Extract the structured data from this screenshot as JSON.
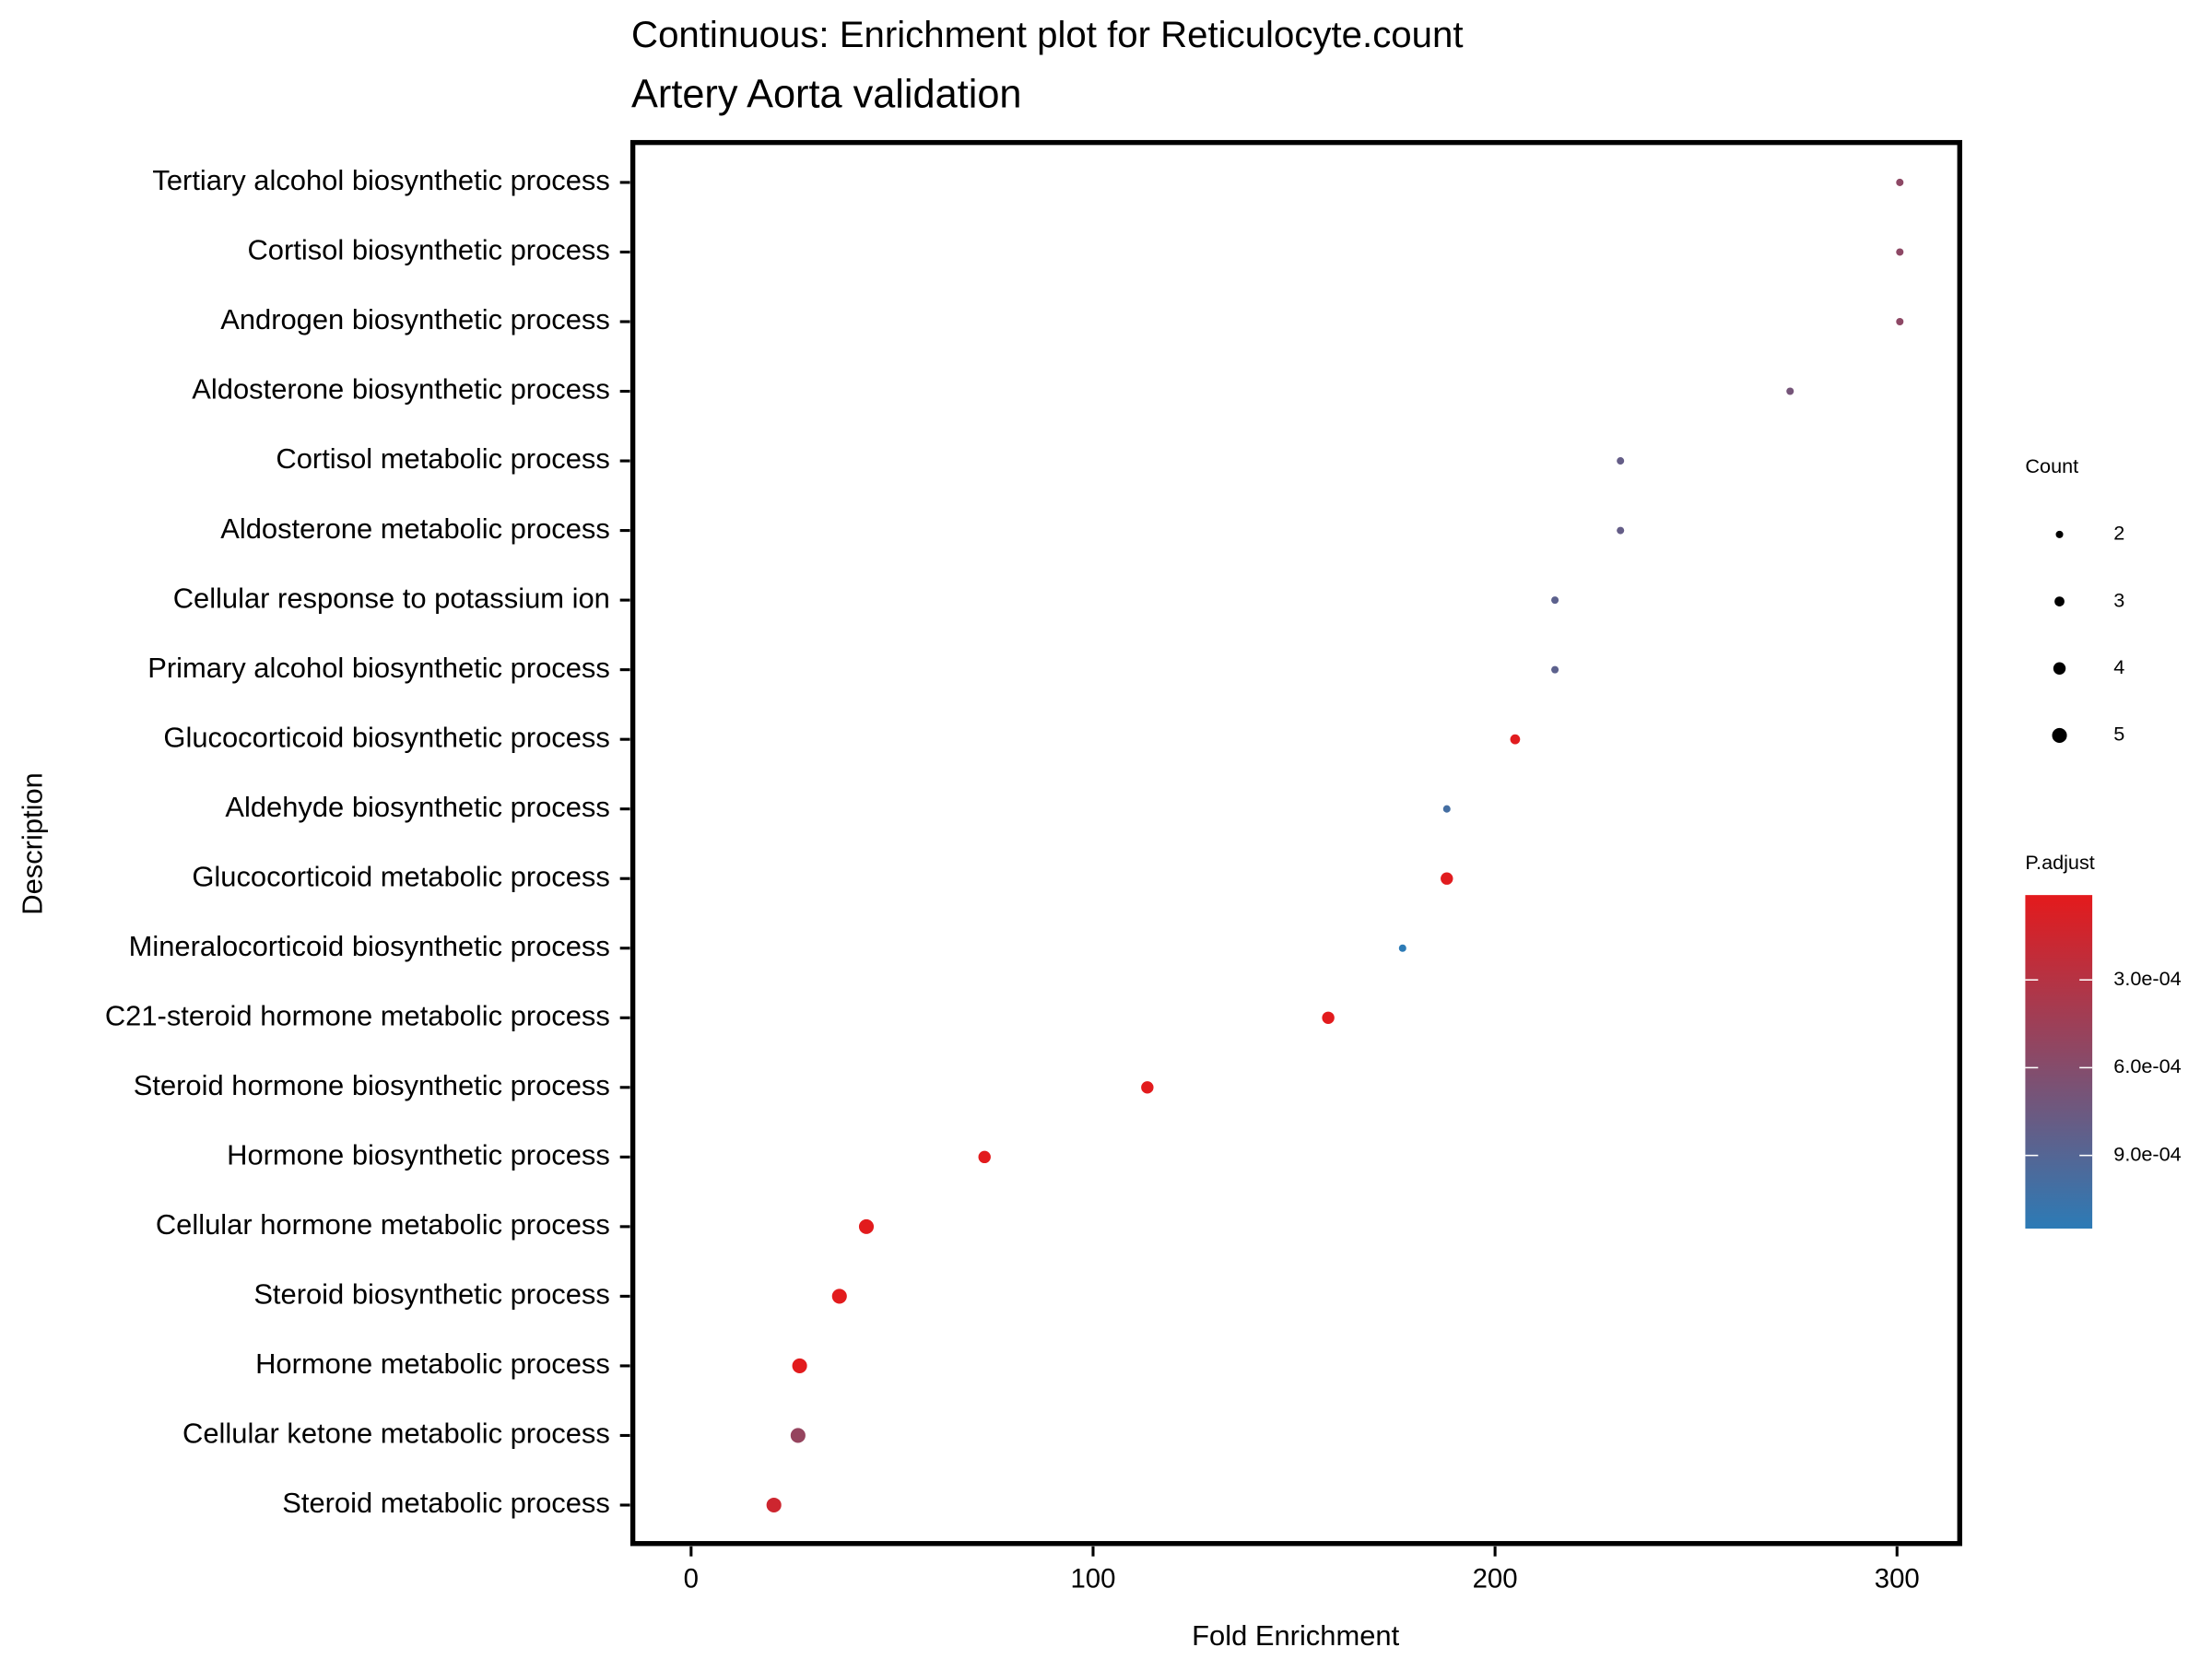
{
  "chart_data": {
    "type": "dot",
    "title": "Continuous: Enrichment plot for Reticulocyte.count",
    "subtitle": "Artery Aorta validation",
    "x_label": "Fold Enrichment",
    "y_label": "Description",
    "categories": [
      "Tertiary alcohol biosynthetic process",
      "Cortisol biosynthetic process",
      "Androgen biosynthetic process",
      "Aldosterone biosynthetic process",
      "Cortisol metabolic process",
      "Aldosterone metabolic process",
      "Cellular response to potassium ion",
      "Primary alcohol biosynthetic process",
      "Glucocorticoid biosynthetic process",
      "Aldehyde biosynthetic process",
      "Glucocorticoid metabolic process",
      "Mineralocorticoid biosynthetic process",
      "C21-steroid hormone metabolic process",
      "Steroid hormone biosynthetic process",
      "Hormone biosynthetic process",
      "Cellular hormone metabolic process",
      "Steroid biosynthetic process",
      "Hormone metabolic process",
      "Cellular ketone metabolic process",
      "Steroid metabolic process"
    ],
    "values": [
      300.7,
      300.7,
      300.7,
      273.4,
      231.2,
      231.2,
      214.9,
      214.9,
      205,
      188,
      188,
      177,
      158.5,
      113.5,
      73,
      43.6,
      36.9,
      27,
      26.6,
      20.6
    ],
    "counts": [
      2,
      2,
      2,
      2,
      2,
      2,
      2,
      2,
      3,
      2,
      4,
      2,
      4,
      4,
      4,
      5,
      5,
      5,
      5,
      5
    ],
    "p_adjust": [
      0.00055,
      0.00055,
      0.00055,
      0.0007,
      0.0008,
      0.0008,
      0.00085,
      0.00085,
      3e-05,
      0.001,
      3e-05,
      0.00115,
      2e-05,
      2e-05,
      2e-05,
      2e-05,
      2e-05,
      2e-05,
      0.0005,
      0.00015
    ],
    "xlim": [
      -14.5,
      315.6
    ],
    "xticks": [
      0,
      100,
      200,
      300
    ],
    "size_label": "Count",
    "size_legend": [
      2,
      3,
      4,
      5
    ],
    "color_label": "P.adjust",
    "color_lim": [
      1e-05,
      0.00115
    ],
    "color_ticks": [
      {
        "value": 0.0003,
        "label": "3.0e-04"
      },
      {
        "value": 0.0006,
        "label": "6.0e-04"
      },
      {
        "value": 0.0009,
        "label": "9.0e-04"
      }
    ],
    "color_low": "#e41a1c",
    "color_high": "#2c7bb6"
  }
}
